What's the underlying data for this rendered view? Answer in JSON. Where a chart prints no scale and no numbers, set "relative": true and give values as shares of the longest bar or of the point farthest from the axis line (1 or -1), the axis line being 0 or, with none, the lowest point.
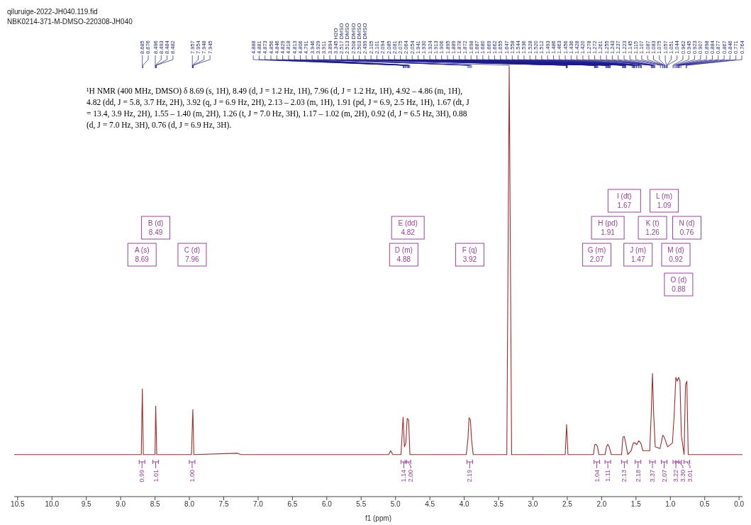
{
  "chart_data": {
    "type": "line",
    "title": "qiluruige-2022-JH040.119.fid",
    "subtitle": "NBK0214-371-M-DMSO-220308-JH040",
    "xlabel": "f1 (ppm)",
    "relative": true,
    "xlim": [
      10.55,
      -0.05
    ],
    "xticks": [
      10.5,
      {
        "value": 10,
        "label": "10.0"
      },
      9.5,
      {
        "value": 9,
        "label": "9.0"
      },
      8.5,
      {
        "value": 8,
        "label": "8.0"
      },
      7.5,
      {
        "value": 7,
        "label": "7.0"
      },
      6.5,
      {
        "value": 6,
        "label": "6.0"
      },
      5.5,
      {
        "value": 5,
        "label": "5.0"
      },
      4.5,
      {
        "value": 4,
        "label": "4.0"
      },
      3.5,
      {
        "value": 3,
        "label": "3.0"
      },
      2.5,
      {
        "value": 2,
        "label": "2.0"
      },
      1.5,
      {
        "value": 1,
        "label": "1.0"
      },
      0.5,
      {
        "value": 0,
        "label": "0.0"
      }
    ],
    "x": [
      10.55,
      9.0,
      8.7,
      8.685,
      8.67,
      8.5,
      8.49,
      8.475,
      7.97,
      7.95,
      7.935,
      7.3,
      7.25,
      5.1,
      5.07,
      5.04,
      4.92,
      4.89,
      4.87,
      4.85,
      4.83,
      4.81,
      4.79,
      3.97,
      3.946,
      3.93,
      3.91,
      3.894,
      3.87,
      3.38,
      3.345,
      3.31,
      2.53,
      2.51,
      2.49,
      2.12,
      2.1,
      2.08,
      2.06,
      2.04,
      1.95,
      1.93,
      1.91,
      1.89,
      1.86,
      1.71,
      1.69,
      1.67,
      1.65,
      1.62,
      1.57,
      1.54,
      1.51,
      1.49,
      1.46,
      1.43,
      1.4,
      1.3,
      1.278,
      1.26,
      1.243,
      1.22,
      1.15,
      1.11,
      1.09,
      1.06,
      1.04,
      0.97,
      0.945,
      0.92,
      0.9,
      0.88,
      0.86,
      0.84,
      0.8,
      0.78,
      0.76,
      0.74,
      0.5,
      -0.05
    ],
    "series": [
      {
        "color": "#a52a2a",
        "values": [
          0.098,
          0.098,
          0.098,
          0.251,
          0.098,
          0.098,
          0.211,
          0.098,
          0.098,
          0.203,
          0.098,
          0.101,
          0.098,
          0.098,
          0.107,
          0.098,
          0.098,
          0.185,
          0.116,
          0.125,
          0.182,
          0.179,
          0.098,
          0.098,
          0.134,
          0.184,
          0.179,
          0.134,
          0.098,
          0.098,
          1,
          0.098,
          0.098,
          0.168,
          0.098,
          0.098,
          0.121,
          0.122,
          0.116,
          0.098,
          0.098,
          0.116,
          0.122,
          0.116,
          0.098,
          0.098,
          0.139,
          0.14,
          0.125,
          0.098,
          0.107,
          0.125,
          0.125,
          0.121,
          0.13,
          0.125,
          0.107,
          0.107,
          0.194,
          0.287,
          0.194,
          0.116,
          0.112,
          0.143,
          0.139,
          0.125,
          0.116,
          0.125,
          0.188,
          0.278,
          0.269,
          0.278,
          0.269,
          0.143,
          0.098,
          0.26,
          0.269,
          0.098,
          0.098,
          0.098
        ]
      }
    ],
    "annotations": [
      "¹H NMR (400 MHz, DMSO) δ 8.69 (s, 1H), 8.49 (d, J = 1.2 Hz, 1H), 7.96 (d, J = 1.2 Hz, 1H), 4.92 – 4.86 (m, 1H), 4.82 (dd, J = 5.8, 3.7 Hz, 2H), 3.92 (q, J = 6.9 Hz, 2H), 2.13 – 2.03 (m, 1H), 1.91 (pd, J = 6.9, 2.5 Hz, 1H), 1.67 (dt, J = 13.4, 3.9 Hz, 2H), 1.55 – 1.40 (m, 2H), 1.26 (t, J = 7.0 Hz, 3H), 1.17 – 1.02 (m, 2H), 0.92 (d, J = 6.5 Hz, 3H), 0.88 (d, J = 7.0 Hz, 3H), 0.76 (d, J = 6.9 Hz, 3H).",
      {
        "text": "8.685",
        "x": 8.685
      },
      {
        "text": "8.676",
        "x": 8.676
      },
      {
        "text": "8.496",
        "x": 8.496
      },
      {
        "text": "8.493",
        "x": 8.493
      },
      {
        "text": "8.484",
        "x": 8.484
      },
      {
        "text": "8.482",
        "x": 8.482
      },
      {
        "text": "7.957",
        "x": 7.957
      },
      {
        "text": "7.954",
        "x": 7.954
      },
      {
        "text": "7.948",
        "x": 7.948
      },
      {
        "text": "7.945",
        "x": 7.945
      },
      {
        "text": "4.888",
        "x": 4.888
      },
      {
        "text": "4.881",
        "x": 4.881
      },
      {
        "text": "4.873",
        "x": 4.873
      },
      {
        "text": "4.856",
        "x": 4.856
      },
      {
        "text": "4.846",
        "x": 4.846
      },
      {
        "text": "4.829",
        "x": 4.829
      },
      {
        "text": "4.818",
        "x": 4.818
      },
      {
        "text": "4.813",
        "x": 4.813
      },
      {
        "text": "4.806",
        "x": 4.806
      },
      {
        "text": "4.791",
        "x": 4.791
      },
      {
        "text": "3.946",
        "x": 3.946
      },
      {
        "text": "3.929",
        "x": 3.929
      },
      {
        "text": "3.911",
        "x": 3.911
      },
      {
        "text": "3.894",
        "x": 3.894
      },
      {
        "text": "3.345 H2O",
        "x": 3.345
      },
      {
        "text": "2.517 DMSO",
        "x": 2.517
      },
      {
        "text": "2.513 DMSO",
        "x": 2.513
      },
      {
        "text": "2.508 DMSO",
        "x": 2.508
      },
      {
        "text": "2.503 DMSO",
        "x": 2.503
      },
      {
        "text": "2.499 DMSO",
        "x": 2.499
      },
      {
        "text": "2.105",
        "x": 2.105
      },
      {
        "text": "2.101",
        "x": 2.101
      },
      {
        "text": "2.094",
        "x": 2.094
      },
      {
        "text": "2.085",
        "x": 2.085
      },
      {
        "text": "2.081",
        "x": 2.081
      },
      {
        "text": "2.075",
        "x": 2.075
      },
      {
        "text": "2.064",
        "x": 2.064
      },
      {
        "text": "2.054",
        "x": 2.054
      },
      {
        "text": "1.941",
        "x": 1.941
      },
      {
        "text": "1.930",
        "x": 1.93
      },
      {
        "text": "1.924",
        "x": 1.924
      },
      {
        "text": "1.913",
        "x": 1.913
      },
      {
        "text": "1.906",
        "x": 1.906
      },
      {
        "text": "1.895",
        "x": 1.895
      },
      {
        "text": "1.889",
        "x": 1.889
      },
      {
        "text": "1.878",
        "x": 1.878
      },
      {
        "text": "1.872",
        "x": 1.872
      },
      {
        "text": "1.698",
        "x": 1.698
      },
      {
        "text": "1.687",
        "x": 1.687
      },
      {
        "text": "1.680",
        "x": 1.68
      },
      {
        "text": "1.669",
        "x": 1.669
      },
      {
        "text": "1.662",
        "x": 1.662
      },
      {
        "text": "1.655",
        "x": 1.655
      },
      {
        "text": "1.647",
        "x": 1.647
      },
      {
        "text": "1.558",
        "x": 1.558
      },
      {
        "text": "1.544",
        "x": 1.544
      },
      {
        "text": "1.536",
        "x": 1.536
      },
      {
        "text": "1.528",
        "x": 1.528
      },
      {
        "text": "1.520",
        "x": 1.52
      },
      {
        "text": "1.512",
        "x": 1.512
      },
      {
        "text": "1.493",
        "x": 1.493
      },
      {
        "text": "1.486",
        "x": 1.486
      },
      {
        "text": "1.463",
        "x": 1.463
      },
      {
        "text": "1.456",
        "x": 1.456
      },
      {
        "text": "1.436",
        "x": 1.436
      },
      {
        "text": "1.428",
        "x": 1.428
      },
      {
        "text": "1.420",
        "x": 1.42
      },
      {
        "text": "1.278",
        "x": 1.278
      },
      {
        "text": "1.272",
        "x": 1.272
      },
      {
        "text": "1.261",
        "x": 1.261
      },
      {
        "text": "1.255",
        "x": 1.255
      },
      {
        "text": "1.243",
        "x": 1.243
      },
      {
        "text": "1.237",
        "x": 1.237
      },
      {
        "text": "1.223",
        "x": 1.223
      },
      {
        "text": "1.145",
        "x": 1.145
      },
      {
        "text": "1.115",
        "x": 1.115
      },
      {
        "text": "1.107",
        "x": 1.107
      },
      {
        "text": "1.087",
        "x": 1.087
      },
      {
        "text": "1.083",
        "x": 1.083
      },
      {
        "text": "1.075",
        "x": 1.075
      },
      {
        "text": "1.057",
        "x": 1.057
      },
      {
        "text": "1.051",
        "x": 1.051
      },
      {
        "text": "1.044",
        "x": 1.044
      },
      {
        "text": "0.962",
        "x": 0.962
      },
      {
        "text": "0.945",
        "x": 0.945
      },
      {
        "text": "0.923",
        "x": 0.923
      },
      {
        "text": "0.907",
        "x": 0.907
      },
      {
        "text": "0.898",
        "x": 0.898
      },
      {
        "text": "0.884",
        "x": 0.884
      },
      {
        "text": "0.877",
        "x": 0.877
      },
      {
        "text": "0.867",
        "x": 0.867
      },
      {
        "text": "0.846",
        "x": 0.846
      },
      {
        "text": "0.771",
        "x": 0.771
      },
      {
        "text": "0.764",
        "x": 0.764
      },
      "A (s)\n8.69",
      "B (d)\n8.49",
      "C (d)\n7.96",
      "D (m)\n4.88",
      "E (dd)\n4.82",
      "F (q)\n3.92",
      "G (m)\n2.07",
      "H (pd)\n1.91",
      "I (dt)\n1.67",
      "J (m)\n1.47",
      "K (t)\n1.26",
      "L (m)\n1.09",
      "M (d)\n0.92",
      "O (d)\n0.88",
      "N (d)\n0.76",
      "0.99",
      "1.01",
      "1.00",
      "1.14",
      "2.00",
      "2.19",
      "1.04",
      "1.11",
      "2.13",
      "2.18",
      "3.37",
      "2.07",
      "3.22",
      "3.30",
      "3.01"
    ]
  }
}
